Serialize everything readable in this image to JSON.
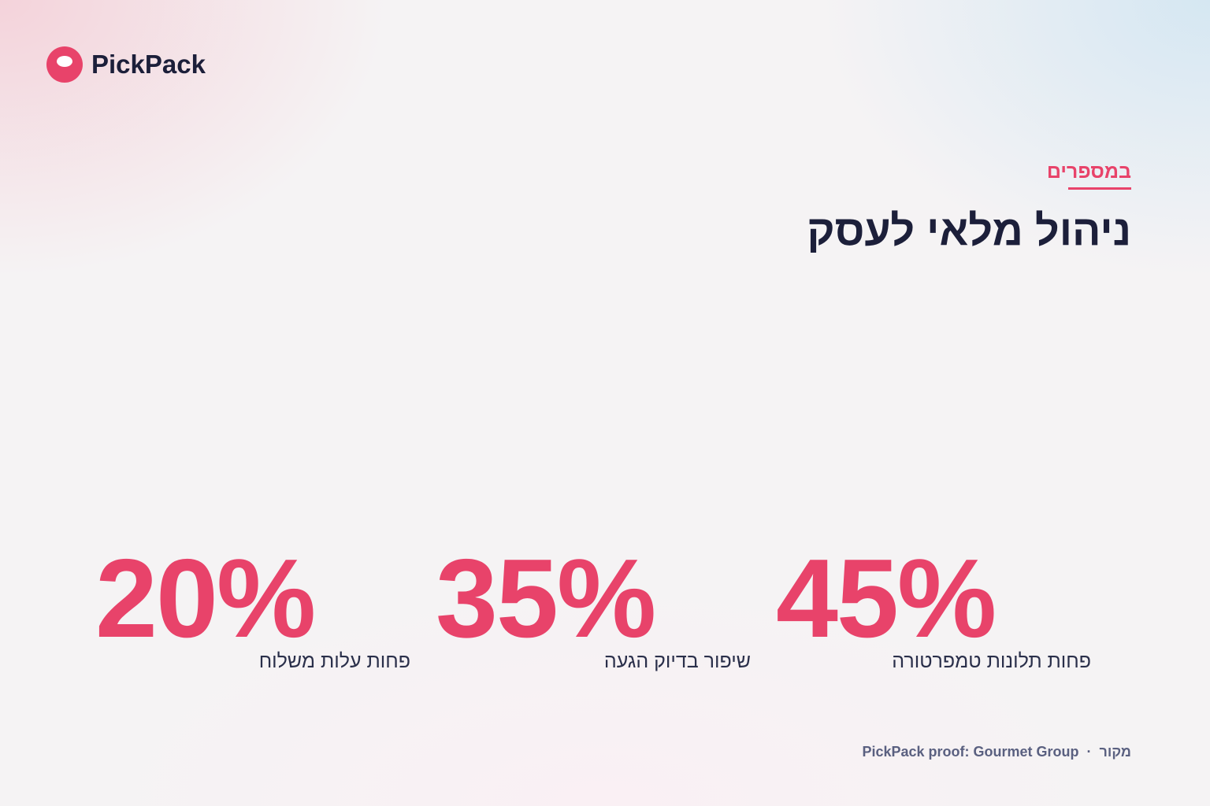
{
  "brand": {
    "name": "PickPack"
  },
  "section": {
    "eyebrow": "במספרים",
    "title": "ניהול מלאי לעסק"
  },
  "stats": [
    {
      "value": "45%",
      "label": "פחות תלונות טמפרטורה"
    },
    {
      "value": "35%",
      "label": "שיפור בדיוק הגעה"
    },
    {
      "value": "20%",
      "label": "פחות עלות משלוח"
    }
  ],
  "footer": {
    "source_label": "מקור",
    "separator": "·",
    "source": "PickPack proof: Gourmet Group"
  }
}
